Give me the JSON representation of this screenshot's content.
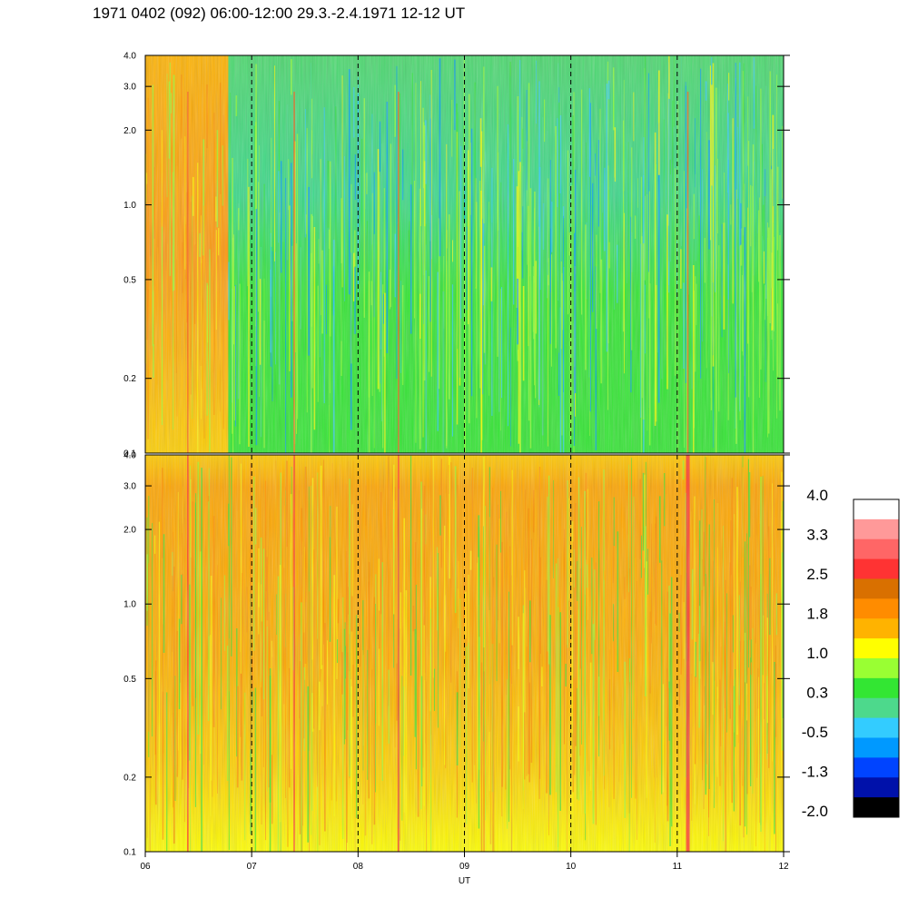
{
  "chart_data": {
    "type": "heatmap",
    "title": "1971 0402 (092) 06:00-12:00 29.3.-2.4.1971  12-12 UT",
    "xlabel": "UT",
    "x_ticks": [
      "06",
      "07",
      "08",
      "09",
      "10",
      "11",
      "12"
    ],
    "xlim": [
      6,
      12
    ],
    "dashed_gridlines_x": [
      7,
      8,
      9,
      10,
      11
    ],
    "panels": [
      {
        "name": "upper",
        "y_scale": "log",
        "ylim": [
          0.1,
          4.0
        ],
        "y_ticks": [
          "0.1",
          "0.2",
          "0.5",
          "1.0",
          "2.0",
          "3.0",
          "4.0"
        ],
        "y_tick_values": [
          0.1,
          0.2,
          0.5,
          1.0,
          2.0,
          3.0,
          4.0
        ],
        "dominant_level": 0.3
      },
      {
        "name": "lower",
        "y_scale": "log",
        "ylim": [
          0.1,
          4.0
        ],
        "y_ticks": [
          "0.1",
          "0.2",
          "0.5",
          "1.0",
          "2.0",
          "3.0",
          "4.0"
        ],
        "y_tick_values": [
          0.1,
          0.2,
          0.5,
          1.0,
          2.0,
          3.0,
          4.0
        ],
        "dominant_level": 1.8
      }
    ],
    "colorbar": {
      "labels": [
        "4.0",
        "3.3",
        "2.5",
        "1.8",
        "1.0",
        "0.3",
        "-0.5",
        "-1.3",
        "-2.0"
      ],
      "colors_top_to_bottom": [
        "#ffffff",
        "#ff9999",
        "#ff6666",
        "#ff3333",
        "#d97000",
        "#ff8c00",
        "#ffb300",
        "#ffff00",
        "#99ff33",
        "#33e633",
        "#4dd98c",
        "#33ccff",
        "#0099ff",
        "#0044ff",
        "#0011aa",
        "#000000"
      ]
    },
    "grid": false
  }
}
